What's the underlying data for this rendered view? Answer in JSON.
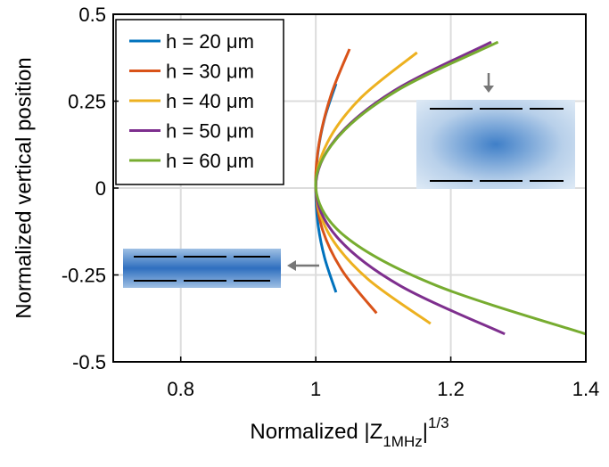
{
  "chart_data": {
    "type": "line",
    "x_label": {
      "text": "Normalized |Z",
      "subscript": "1MHz",
      "close": "|",
      "superscript": "1/3"
    },
    "y_label": "Normalized vertical position",
    "xlim": [
      0.7,
      1.4
    ],
    "xticks": [
      0.8,
      1,
      1.2,
      1.4
    ],
    "ylim": [
      -0.5,
      0.5
    ],
    "yticks": [
      -0.5,
      -0.25,
      0,
      0.25,
      0.5
    ],
    "grid": true,
    "legend": "upper-left",
    "series": [
      {
        "name": "h = 20 μm",
        "color": "#0072BD",
        "x": [
          1.03,
          1.013,
          1.003,
          1,
          1.003,
          1.013,
          1.03
        ],
        "y": [
          -0.3,
          -0.2,
          -0.1,
          0,
          0.1,
          0.2,
          0.3
        ]
      },
      {
        "name": "h = 30 μm",
        "color": "#D95319",
        "x": [
          1.09,
          1.04,
          1.01,
          1,
          1.005,
          1.023,
          1.05
        ],
        "y": [
          -0.36,
          -0.24,
          -0.12,
          0,
          0.13,
          0.27,
          0.4
        ]
      },
      {
        "name": "h = 40 μm",
        "color": "#EDB120",
        "x": [
          1.17,
          1.076,
          1.019,
          1,
          1.017,
          1.067,
          1.15
        ],
        "y": [
          -0.39,
          -0.26,
          -0.13,
          0,
          0.13,
          0.26,
          0.39
        ]
      },
      {
        "name": "h = 50 μm",
        "color": "#7E2F8E",
        "x": [
          1.28,
          1.124,
          1.031,
          1,
          1.029,
          1.116,
          1.26
        ],
        "y": [
          -0.42,
          -0.28,
          -0.14,
          0,
          0.14,
          0.28,
          0.42
        ]
      },
      {
        "name": "h = 60 μm",
        "color": "#77AC30",
        "x": [
          1.4,
          1.178,
          1.044,
          1,
          1.03,
          1.12,
          1.27
        ],
        "y": [
          -0.42,
          -0.28,
          -0.14,
          0,
          0.14,
          0.28,
          0.42
        ]
      }
    ]
  }
}
